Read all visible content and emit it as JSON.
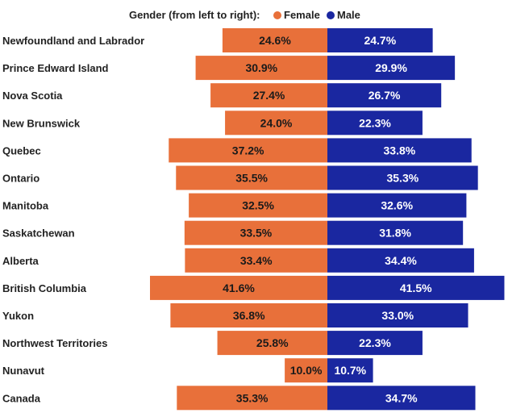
{
  "legend": {
    "title": "Gender (from left to right):",
    "female_label": "Female",
    "male_label": "Male"
  },
  "colors": {
    "female": "#E8703A",
    "male": "#1A27A0",
    "female_text": "#1a1a1a",
    "male_text": "#ffffff"
  },
  "chart_data": {
    "type": "bar",
    "orientation": "horizontal",
    "layout": "butterfly",
    "categories": [
      "Newfoundland and Labrador",
      "Prince Edward Island",
      "Nova Scotia",
      "New Brunswick",
      "Quebec",
      "Ontario",
      "Manitoba",
      "Saskatchewan",
      "Alberta",
      "British Columbia",
      "Yukon",
      "Northwest Territories",
      "Nunavut",
      "Canada"
    ],
    "series": [
      {
        "name": "Female",
        "values": [
          24.6,
          30.9,
          27.4,
          24.0,
          37.2,
          35.5,
          32.5,
          33.5,
          33.4,
          41.6,
          36.8,
          25.8,
          10.0,
          35.3
        ],
        "labels": [
          "24.6%",
          "30.9%",
          "27.4%",
          "24.0%",
          "37.2%",
          "35.5%",
          "32.5%",
          "33.5%",
          "33.4%",
          "41.6%",
          "36.8%",
          "25.8%",
          "10.0%",
          "35.3%"
        ]
      },
      {
        "name": "Male",
        "values": [
          24.7,
          29.9,
          26.7,
          22.3,
          33.8,
          35.3,
          32.6,
          31.8,
          34.4,
          41.5,
          33.0,
          22.3,
          10.7,
          34.7
        ],
        "labels": [
          "24.7%",
          "29.9%",
          "26.7%",
          "22.3%",
          "33.8%",
          "35.3%",
          "32.6%",
          "31.8%",
          "34.4%",
          "41.5%",
          "33.0%",
          "22.3%",
          "10.7%",
          "34.7%"
        ]
      }
    ],
    "title": "",
    "xlabel": "",
    "ylabel": "",
    "xlim": [
      0,
      41.6
    ],
    "legend_position": "top"
  }
}
